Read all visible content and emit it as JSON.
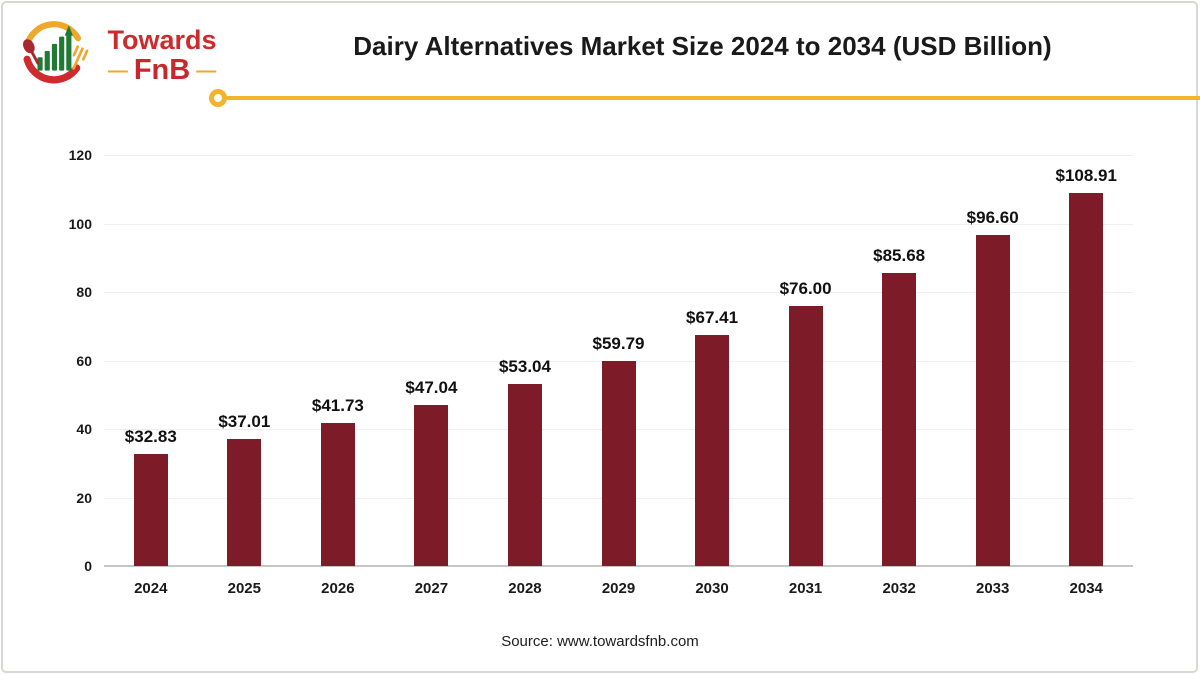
{
  "page": {
    "background": "#ffffff",
    "frame_border_color": "#d9d6d3"
  },
  "header": {
    "logo": {
      "line1": "Towards",
      "line2": "FnB",
      "dash": "—",
      "brand_red": "#ce2b2f",
      "brand_yellow": "#efa82c",
      "brand_green": "#1f7a33"
    },
    "title": "Dairy Alternatives Market Size 2024 to 2034 (USD Billion)",
    "divider_color": "#f3b32b"
  },
  "chart_data": {
    "type": "bar",
    "title": "Dairy Alternatives Market Size 2024 to 2034 (USD Billion)",
    "categories": [
      "2024",
      "2025",
      "2026",
      "2027",
      "2028",
      "2029",
      "2030",
      "2031",
      "2032",
      "2033",
      "2034"
    ],
    "values": [
      32.83,
      37.01,
      41.73,
      47.04,
      53.04,
      59.79,
      67.41,
      76.0,
      85.68,
      96.6,
      108.91
    ],
    "display_values": [
      "$32.83",
      "$37.01",
      "$41.73",
      "$47.04",
      "$53.04",
      "$59.79",
      "$67.41",
      "$76.00",
      "$85.68",
      "$96.60",
      "$108.91"
    ],
    "xlabel": "",
    "ylabel": "",
    "ylim": [
      0,
      120
    ],
    "yticks": [
      0,
      20,
      40,
      60,
      80,
      100,
      120
    ],
    "bar_color": "#7e1b28",
    "gridline_color": "#f1efed",
    "axis_line_color": "#c6c6c6",
    "grid": "horizontal",
    "legend_position": "none"
  },
  "footer": {
    "source": "Source: www.towardsfnb.com"
  }
}
